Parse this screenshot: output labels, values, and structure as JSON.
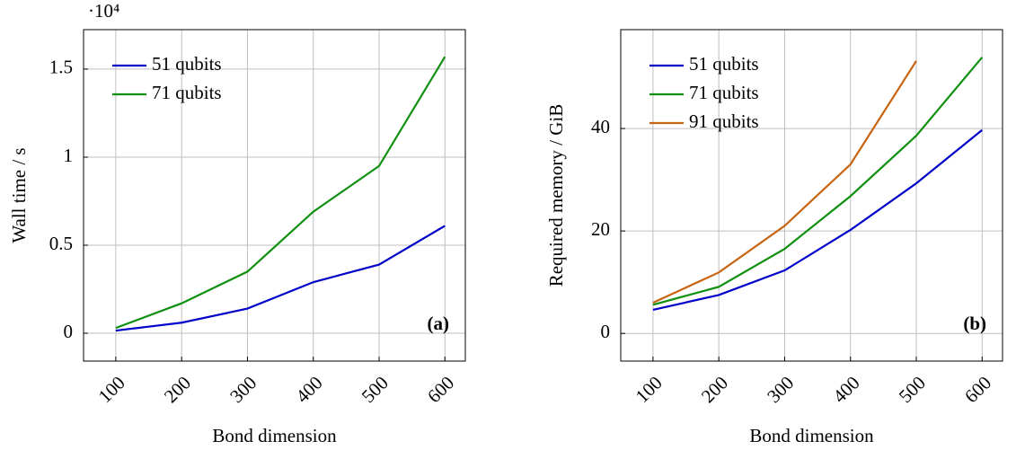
{
  "chart_data": [
    {
      "type": "line",
      "x_label": "Bond dimension",
      "y_label": "Wall time / s",
      "y_multiplier": "·10⁴",
      "annotation": "(a)",
      "x": [
        100,
        200,
        300,
        400,
        500,
        600
      ],
      "series": [
        {
          "name": "51 qubits",
          "color": "#0000c8",
          "values": [
            0.015,
            0.06,
            0.14,
            0.29,
            0.39,
            0.61
          ]
        },
        {
          "name": "71 qubits",
          "color": "#109010",
          "values": [
            0.03,
            0.17,
            0.35,
            0.69,
            0.95,
            1.57
          ]
        }
      ],
      "xlim": [
        51,
        631
      ],
      "xticks": [
        100,
        200,
        300,
        400,
        500,
        600
      ],
      "ylim": [
        -0.158,
        1.724
      ],
      "yticks": [
        0,
        0.5,
        1,
        1.5
      ],
      "grid": true,
      "legend": "upper-left"
    },
    {
      "type": "line",
      "x_label": "Bond dimension",
      "y_label": "Required memory / GiB",
      "annotation": "(b)",
      "x": [
        100,
        200,
        300,
        400,
        500,
        600
      ],
      "series": [
        {
          "name": "51 qubits",
          "color": "#0000c8",
          "values": [
            4.6,
            7.5,
            12.3,
            20.2,
            29.3,
            39.7
          ]
        },
        {
          "name": "71 qubits",
          "color": "#109010",
          "values": [
            5.6,
            9.1,
            16.5,
            26.8,
            38.6,
            53.9
          ]
        },
        {
          "name": "91 qubits",
          "color": "#c86410",
          "values": [
            6,
            11.9,
            21,
            33,
            53.2,
            null
          ]
        }
      ],
      "xlim": [
        51,
        631
      ],
      "xticks": [
        100,
        200,
        300,
        400,
        500,
        600
      ],
      "ylim": [
        -5.4,
        59.3
      ],
      "yticks": [
        0,
        20,
        40
      ],
      "grid": true,
      "legend": "upper-left"
    }
  ]
}
